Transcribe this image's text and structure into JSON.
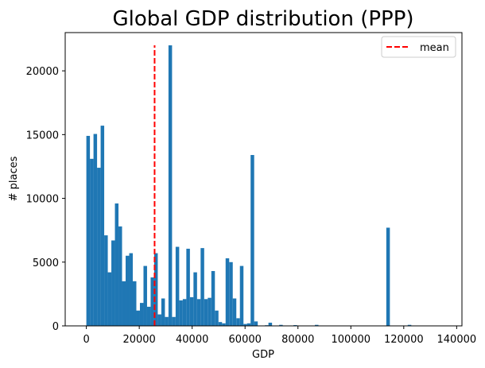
{
  "chart_data": {
    "type": "bar",
    "title": "Global GDP distribution (PPP)",
    "xlabel": "GDP",
    "ylabel": "# places",
    "xlim": [
      -8000,
      142000
    ],
    "ylim": [
      0,
      23000
    ],
    "xticks": [
      0,
      20000,
      40000,
      60000,
      80000,
      100000,
      120000,
      140000
    ],
    "xtick_labels": [
      "0",
      "20000",
      "40000",
      "60000",
      "80000",
      "100000",
      "120000",
      "140000"
    ],
    "yticks": [
      0,
      5000,
      10000,
      15000,
      20000
    ],
    "ytick_labels": [
      "0",
      "5000",
      "10000",
      "15000",
      "20000"
    ],
    "bin_width": 1350,
    "bin_start": 0,
    "bins_x": [
      0,
      1350,
      2700,
      4050,
      5400,
      6750,
      8100,
      9450,
      10800,
      12150,
      13500,
      14850,
      16200,
      17550,
      18900,
      20250,
      21600,
      22950,
      24300,
      25650,
      27000,
      28350,
      29700,
      31050,
      32400,
      33750,
      35100,
      36450,
      37800,
      39150,
      40500,
      41850,
      43200,
      44550,
      45900,
      47250,
      48600,
      49950,
      51300,
      52650,
      54000,
      55350,
      56700,
      58050,
      59400,
      60750,
      62100,
      63450,
      64800,
      66150,
      67500,
      68850,
      70200,
      71550,
      72900,
      74250,
      75600,
      76950,
      78300,
      79650,
      81000,
      82350,
      83700,
      85050,
      86400,
      87750,
      89100,
      90450,
      91800,
      93150,
      94500,
      95850,
      97200,
      98550,
      99900,
      101250,
      102600,
      103950,
      105300,
      106650,
      108000,
      109350,
      110700,
      112050,
      113400,
      114750,
      116100,
      117450,
      118800,
      120150,
      121500,
      122850,
      124200,
      125550,
      126900,
      128250,
      129600,
      130950,
      132300,
      133650
    ],
    "values": [
      14900,
      13100,
      15050,
      12400,
      15700,
      7100,
      4200,
      6700,
      9600,
      7800,
      3500,
      5500,
      5700,
      3500,
      1200,
      1800,
      4700,
      1500,
      3800,
      5700,
      900,
      2150,
      700,
      22000,
      700,
      6200,
      2000,
      2100,
      6050,
      2250,
      4200,
      2100,
      6100,
      2100,
      2200,
      4300,
      1200,
      300,
      200,
      5300,
      5000,
      2150,
      600,
      4700,
      150,
      200,
      13400,
      350,
      0,
      0,
      50,
      250,
      0,
      0,
      80,
      0,
      0,
      0,
      60,
      0,
      0,
      0,
      0,
      0,
      80,
      0,
      0,
      0,
      0,
      0,
      0,
      0,
      0,
      0,
      0,
      0,
      0,
      0,
      0,
      0,
      0,
      0,
      0,
      0,
      7700,
      0,
      0,
      0,
      0,
      0,
      80,
      0,
      0,
      0,
      0,
      0,
      0,
      0,
      0,
      0
    ],
    "bar_color": "#1f77b4",
    "mean_line": {
      "label": "mean",
      "x": 25800,
      "y_start": 0,
      "y_end": 22000,
      "color": "#ff0000",
      "style": "dashed"
    },
    "legend": {
      "placement": "top-right",
      "entries": [
        "mean"
      ]
    },
    "grid": false
  }
}
